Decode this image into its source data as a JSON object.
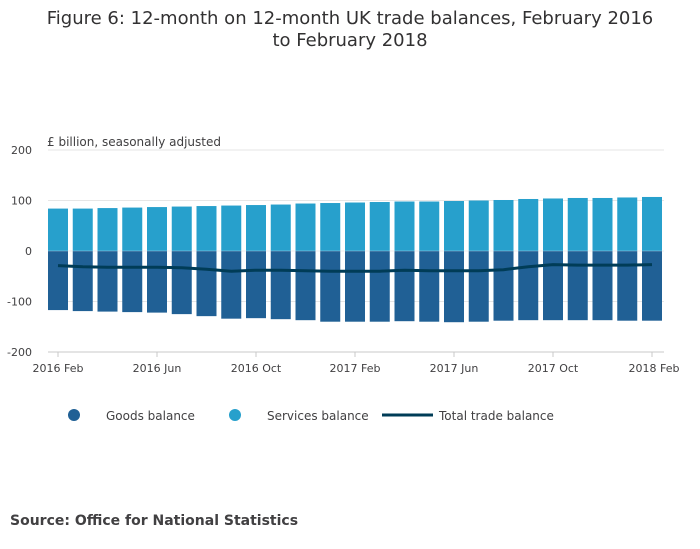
{
  "title": "Figure 6: 12-month on 12-month UK trade balances, February 2016 to February 2018",
  "source": "Source: Office for National Statistics",
  "colors": {
    "goods": "#206095",
    "services": "#27a0cc",
    "total": "#003c57",
    "grid": "#e6e6e6",
    "axis": "#c8c8c8"
  },
  "chart_data": {
    "type": "bar",
    "stacked": true,
    "ylabel": "£ billion, seasonally adjusted",
    "ylim": [
      -200,
      200
    ],
    "yticks": [
      200,
      100,
      0,
      -100,
      -200
    ],
    "grid": true,
    "legend_position": "bottom",
    "x": [
      "2016 Feb",
      "2016 Mar",
      "2016 Apr",
      "2016 May",
      "2016 Jun",
      "2016 Jul",
      "2016 Aug",
      "2016 Sep",
      "2016 Oct",
      "2016 Nov",
      "2016 Dec",
      "2017 Jan",
      "2017 Feb",
      "2017 Mar",
      "2017 Apr",
      "2017 May",
      "2017 Jun",
      "2017 Jul",
      "2017 Aug",
      "2017 Sep",
      "2017 Oct",
      "2017 Nov",
      "2017 Dec",
      "2018 Jan",
      "2018 Feb"
    ],
    "xtick_labels": [
      "2016 Feb",
      "2016 Jun",
      "2016 Oct",
      "2017 Feb",
      "2017 Jun",
      "2017 Oct",
      "2018 Feb"
    ],
    "series": [
      {
        "name": "Goods balance",
        "kind": "bar",
        "values": [
          -117,
          -119,
          -120,
          -121,
          -122,
          -125,
          -129,
          -134,
          -133,
          -135,
          -137,
          -140,
          -140,
          -140,
          -139,
          -140,
          -141,
          -140,
          -138,
          -137,
          -137,
          -137,
          -137,
          -138,
          -138
        ]
      },
      {
        "name": "Services balance",
        "kind": "bar",
        "values": [
          84,
          84,
          85,
          86,
          87,
          88,
          89,
          90,
          91,
          92,
          94,
          95,
          96,
          97,
          98,
          98,
          99,
          100,
          101,
          103,
          104,
          105,
          105,
          106,
          107
        ]
      },
      {
        "name": "Total trade balance",
        "kind": "line",
        "values": [
          -29,
          -31,
          -32,
          -32,
          -32,
          -33,
          -36,
          -40,
          -38,
          -38,
          -39,
          -40,
          -40,
          -40,
          -38,
          -39,
          -39,
          -39,
          -37,
          -31,
          -27,
          -28,
          -28,
          -28,
          -27
        ]
      }
    ]
  }
}
